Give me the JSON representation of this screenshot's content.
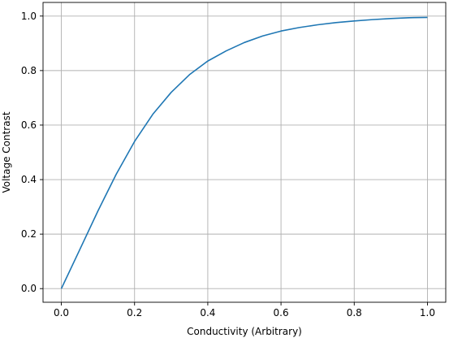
{
  "chart_data": {
    "type": "line",
    "title": "",
    "xlabel": "Conductivity (Arbitrary)",
    "ylabel": "Voltage Contrast",
    "xlim": [
      -0.05,
      1.05
    ],
    "ylim": [
      -0.05,
      1.05
    ],
    "x_ticks": [
      0.0,
      0.2,
      0.4,
      0.6,
      0.8,
      1.0
    ],
    "x_tick_labels": [
      "0.0",
      "0.2",
      "0.4",
      "0.6",
      "0.8",
      "1.0"
    ],
    "y_ticks": [
      0.0,
      0.2,
      0.4,
      0.6,
      0.8,
      1.0
    ],
    "y_tick_labels": [
      "0.0",
      "0.2",
      "0.4",
      "0.6",
      "0.8",
      "1.0"
    ],
    "grid": true,
    "legend": "none",
    "series": [
      {
        "color": "#1f77b4",
        "x": [
          0.0,
          0.05,
          0.1,
          0.15,
          0.2,
          0.25,
          0.3,
          0.35,
          0.4,
          0.45,
          0.5,
          0.55,
          0.6,
          0.65,
          0.7,
          0.75,
          0.8,
          0.85,
          0.9,
          0.95,
          1.0
        ],
        "y": [
          0.0,
          0.142,
          0.285,
          0.42,
          0.54,
          0.64,
          0.72,
          0.785,
          0.835,
          0.872,
          0.903,
          0.927,
          0.945,
          0.958,
          0.968,
          0.976,
          0.982,
          0.987,
          0.991,
          0.994,
          0.995
        ]
      }
    ]
  }
}
